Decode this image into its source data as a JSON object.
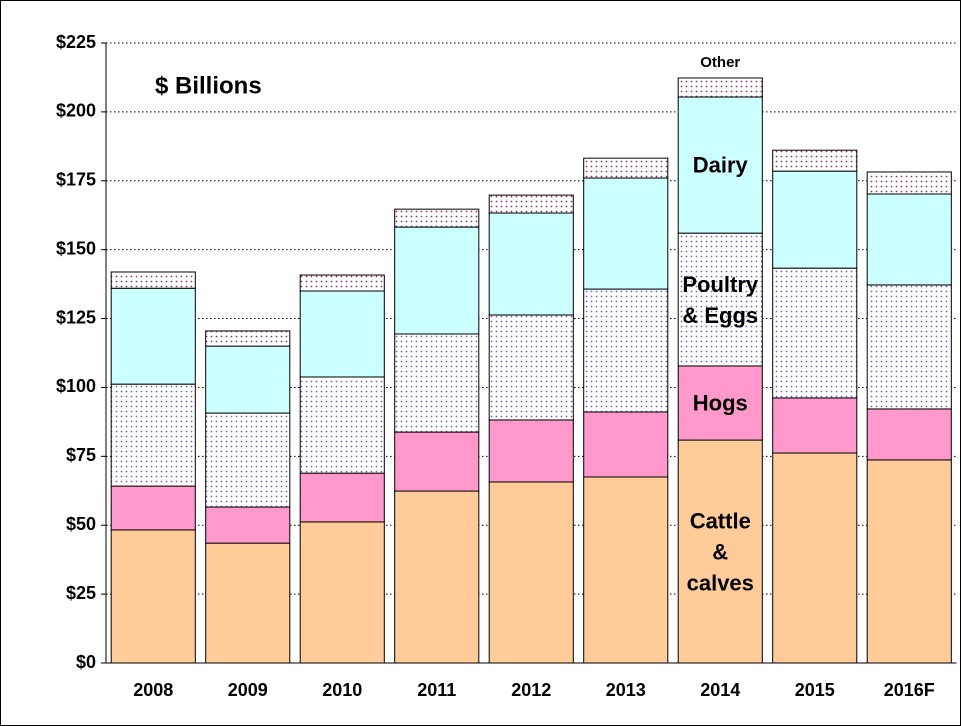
{
  "chart_data": {
    "type": "stacked_bar",
    "annotation": "$ Billions",
    "categories": [
      "2008",
      "2009",
      "2010",
      "2011",
      "2012",
      "2013",
      "2014",
      "2015",
      "2016F"
    ],
    "series": [
      {
        "name": "Cattle & calves",
        "color": "#ffcc99",
        "pattern": false,
        "values": [
          48.3,
          43.5,
          51.2,
          62.4,
          65.7,
          67.5,
          80.9,
          76.2,
          73.7
        ]
      },
      {
        "name": "Hogs",
        "color": "#ff99cc",
        "pattern": false,
        "values": [
          15.9,
          13.1,
          17.7,
          21.4,
          22.5,
          23.6,
          26.9,
          20.0,
          18.5
        ]
      },
      {
        "name": "Poultry & Eggs",
        "color": "#6666cc",
        "pattern": true,
        "values": [
          37.0,
          34.1,
          34.9,
          35.6,
          38.1,
          44.6,
          48.2,
          47.1,
          45.0
        ]
      },
      {
        "name": "Dairy",
        "color": "#ccffff",
        "pattern": false,
        "values": [
          34.8,
          24.3,
          31.2,
          38.8,
          37.0,
          40.3,
          49.4,
          35.2,
          33.0
        ]
      },
      {
        "name": "Other",
        "color": "#993366",
        "pattern": true,
        "values": [
          5.9,
          5.5,
          5.8,
          6.5,
          6.5,
          7.2,
          6.9,
          7.6,
          8.0
        ]
      }
    ],
    "label_category": "2014",
    "ylim": [
      0,
      225
    ],
    "yticks": [
      {
        "value": 0,
        "label": "$0"
      },
      {
        "value": 25,
        "label": "$25"
      },
      {
        "value": 50,
        "label": "$50"
      },
      {
        "value": 75,
        "label": "$75"
      },
      {
        "value": 100,
        "label": "$100"
      },
      {
        "value": 125,
        "label": "$125"
      },
      {
        "value": 150,
        "label": "$150"
      },
      {
        "value": 175,
        "label": "$175"
      },
      {
        "value": 200,
        "label": "$200"
      },
      {
        "value": 225,
        "label": "$225"
      }
    ],
    "grid": true
  }
}
